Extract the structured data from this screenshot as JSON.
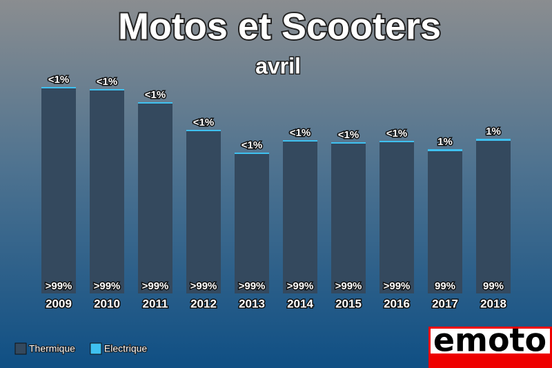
{
  "chart_data": {
    "type": "bar",
    "stacked": true,
    "title": "Motos et Scooters",
    "subtitle": "avril",
    "categories": [
      "2009",
      "2010",
      "2011",
      "2012",
      "2013",
      "2014",
      "2015",
      "2016",
      "2017",
      "2018"
    ],
    "series": [
      {
        "name": "Thermique",
        "color": "#34495e",
        "values": [
          297,
          294,
          275,
          235,
          202,
          220,
          217,
          219,
          206,
          221
        ],
        "value_labels": [
          ">99%",
          ">99%",
          ">99%",
          ">99%",
          ">99%",
          ">99%",
          ">99%",
          ">99%",
          "99%",
          "99%"
        ]
      },
      {
        "name": "Electrique",
        "color": "#3fc1f0",
        "values": [
          2,
          2,
          2,
          2,
          2,
          2,
          2,
          2,
          3,
          3
        ],
        "value_labels": [
          "<1%",
          "<1%",
          "<1%",
          "<1%",
          "<1%",
          "<1%",
          "<1%",
          "<1%",
          "1%",
          "1%"
        ]
      }
    ],
    "ylim": [
      0,
      300
    ],
    "legend": "bottom-left"
  },
  "logo": "emoto"
}
